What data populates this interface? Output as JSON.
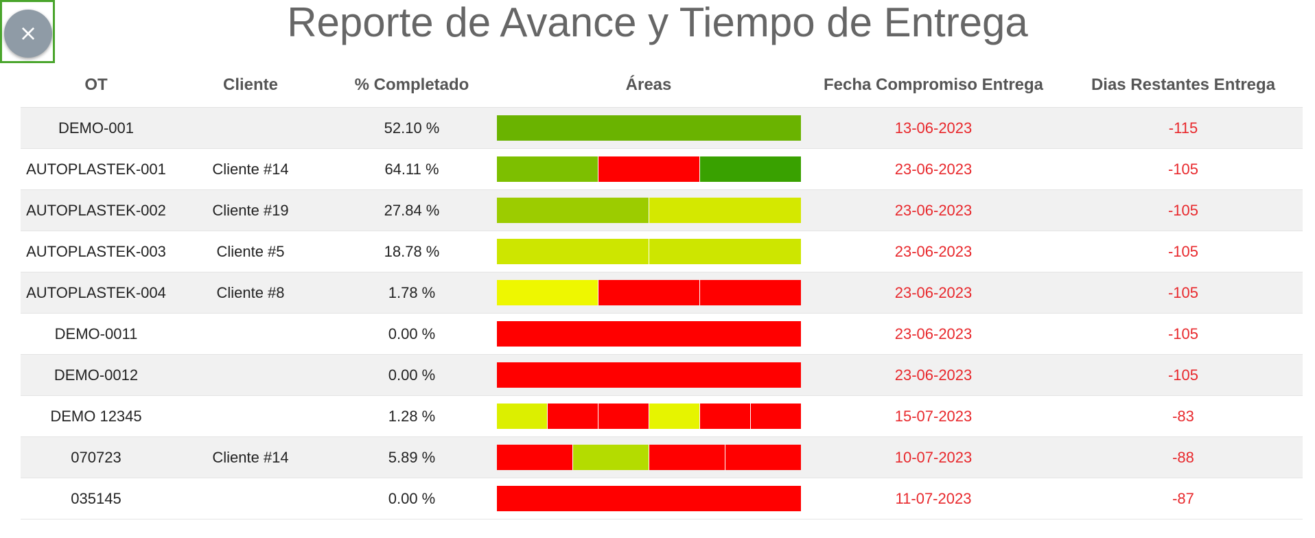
{
  "title": "Reporte de Avance y Tiempo de Entrega",
  "close_button": {
    "label": "×",
    "icon": "close-icon"
  },
  "columns": {
    "ot": "OT",
    "cliente": "Cliente",
    "pct": "% Completado",
    "areas": "Áreas",
    "fecha": "Fecha Compromiso Entrega",
    "dias": "Dias Restantes Entrega"
  },
  "rows": [
    {
      "ot": "DEMO-001",
      "cliente": "",
      "pct": "52.10 %",
      "fecha": "13-06-2023",
      "dias": "-115",
      "areas": [
        "#6ab300"
      ]
    },
    {
      "ot": "AUTOPLASTEK-001",
      "cliente": "Cliente #14",
      "pct": "64.11 %",
      "fecha": "23-06-2023",
      "dias": "-105",
      "areas": [
        "#7dbf00",
        "#ff0000",
        "#39a100"
      ]
    },
    {
      "ot": "AUTOPLASTEK-002",
      "cliente": "Cliente #19",
      "pct": "27.84 %",
      "fecha": "23-06-2023",
      "dias": "-105",
      "areas": [
        "#9ccc00",
        "#d4e800"
      ]
    },
    {
      "ot": "AUTOPLASTEK-003",
      "cliente": "Cliente #5",
      "pct": "18.78 %",
      "fecha": "23-06-2023",
      "dias": "-105",
      "areas": [
        "#cde600",
        "#cde600"
      ]
    },
    {
      "ot": "AUTOPLASTEK-004",
      "cliente": "Cliente #8",
      "pct": "1.78 %",
      "fecha": "23-06-2023",
      "dias": "-105",
      "areas": [
        "#eef700",
        "#ff0000",
        "#ff0000"
      ]
    },
    {
      "ot": "DEMO-0011",
      "cliente": "",
      "pct": "0.00 %",
      "fecha": "23-06-2023",
      "dias": "-105",
      "areas": [
        "#ff0000"
      ]
    },
    {
      "ot": "DEMO-0012",
      "cliente": "",
      "pct": "0.00 %",
      "fecha": "23-06-2023",
      "dias": "-105",
      "areas": [
        "#ff0000"
      ]
    },
    {
      "ot": "DEMO 12345",
      "cliente": "",
      "pct": "1.28 %",
      "fecha": "15-07-2023",
      "dias": "-83",
      "areas": [
        "#dcef00",
        "#ff0000",
        "#ff0000",
        "#e6f400",
        "#ff0000",
        "#ff0000"
      ]
    },
    {
      "ot": "070723",
      "cliente": "Cliente #14",
      "pct": "5.89 %",
      "fecha": "10-07-2023",
      "dias": "-88",
      "areas": [
        "#ff0000",
        "#b4dc00",
        "#ff0000",
        "#ff0000"
      ]
    },
    {
      "ot": "035145",
      "cliente": "",
      "pct": "0.00 %",
      "fecha": "11-07-2023",
      "dias": "-87",
      "areas": [
        "#ff0000"
      ]
    }
  ]
}
